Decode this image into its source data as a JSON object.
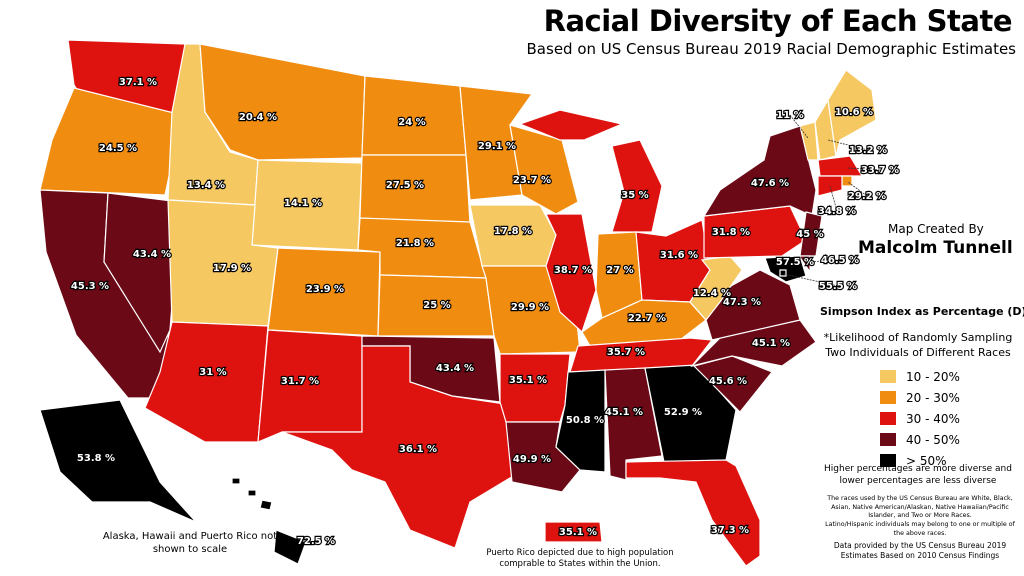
{
  "header": {
    "title": "Racial Diversity of Each State",
    "subtitle": "Based on US Census Bureau 2019 Racial Demographic Estimates"
  },
  "credit": {
    "line1": "Map Created By",
    "line2": "Malcolm Tunnell"
  },
  "legend": {
    "title": "Simpson Index as Percentage (D)*",
    "footnote": "*Likelihood of Randomly Sampling Two Individuals of Different Races",
    "items": [
      {
        "label": "10 - 20%",
        "color": "#f5c862"
      },
      {
        "label": "20 - 30%",
        "color": "#f08c10"
      },
      {
        "label": "30 - 40%",
        "color": "#de120f"
      },
      {
        "label": "40 - 50%",
        "color": "#6b0a16"
      },
      {
        "label": "> 50%",
        "color": "#000000"
      }
    ]
  },
  "notes": [
    "Higher percentages are more diverse and lower percentages are less diverse",
    "The races used by the US Census Bureau are White, Black, Asian, Native American/Alaskan, Native Hawaiian/Pacific Islander, and Two or More Races.",
    "Latino/Hispanic individuals may belong to one or multiple of the above races.",
    "Data provided by the US Census Bureau 2019 Estimates Based on 2010 Census Findings"
  ],
  "map_notes": {
    "scale": "Alaska, Hawaii and Puerto Rico not shown to scale",
    "puerto_rico": "Puerto Rico depicted due to high population comprable to States within the Union."
  },
  "regions": [
    {
      "label": "37.1 %",
      "color": "#de120f"
    },
    {
      "label": "24.5 %",
      "color": "#f08c10"
    },
    {
      "label": "45.3 %",
      "color": "#6b0a16"
    },
    {
      "label": "43.4 %",
      "color": "#6b0a16"
    },
    {
      "label": "13.4 %",
      "color": "#f5c862"
    },
    {
      "label": "20.4 %",
      "color": "#f08c10"
    },
    {
      "label": "14.1 %",
      "color": "#f5c862"
    },
    {
      "label": "17.9 %",
      "color": "#f5c862"
    },
    {
      "label": "31 %",
      "color": "#de120f"
    },
    {
      "label": "23.9 %",
      "color": "#f08c10"
    },
    {
      "label": "31.7 %",
      "color": "#de120f"
    },
    {
      "label": "24 %",
      "color": "#f08c10"
    },
    {
      "label": "27.5 %",
      "color": "#f08c10"
    },
    {
      "label": "21.8 %",
      "color": "#f08c10"
    },
    {
      "label": "25 %",
      "color": "#f08c10"
    },
    {
      "label": "43.4 %",
      "color": "#6b0a16"
    },
    {
      "label": "36.1 %",
      "color": "#de120f"
    },
    {
      "label": "29.1 %",
      "color": "#f08c10"
    },
    {
      "label": "17.8 %",
      "color": "#f5c862"
    },
    {
      "label": "29.9 %",
      "color": "#f08c10"
    },
    {
      "label": "35.1 %",
      "color": "#de120f"
    },
    {
      "label": "49.9 %",
      "color": "#6b0a16"
    },
    {
      "label": "23.7 %",
      "color": "#f08c10"
    },
    {
      "label": "38.7 %",
      "color": "#de120f"
    },
    {
      "label": "35 %",
      "color": "#de120f"
    },
    {
      "label": "27 %",
      "color": "#f08c10"
    },
    {
      "label": "31.6 %",
      "color": "#de120f"
    },
    {
      "label": "22.7 %",
      "color": "#f08c10"
    },
    {
      "label": "35.7 %",
      "color": "#de120f"
    },
    {
      "label": "50.8 %",
      "color": "#000000"
    },
    {
      "label": "45.1 %",
      "color": "#6b0a16"
    },
    {
      "label": "52.9 %",
      "color": "#000000"
    },
    {
      "label": "37.3 %",
      "color": "#de120f"
    },
    {
      "label": "45.6 %",
      "color": "#6b0a16"
    },
    {
      "label": "45.1 %",
      "color": "#6b0a16"
    },
    {
      "label": "47.3 %",
      "color": "#6b0a16"
    },
    {
      "label": "12.4 %",
      "color": "#f5c862"
    },
    {
      "label": "31.8 %",
      "color": "#de120f"
    },
    {
      "label": "47.6 %",
      "color": "#6b0a16"
    },
    {
      "label": "11 %",
      "color": "#f5c862"
    },
    {
      "label": "13.2 %",
      "color": "#f5c862"
    },
    {
      "label": "10.6 %",
      "color": "#f5c862"
    },
    {
      "label": "33.7 %",
      "color": "#de120f"
    },
    {
      "label": "29.2 %",
      "color": "#f08c10"
    },
    {
      "label": "34.8 %",
      "color": "#de120f"
    },
    {
      "label": "45 %",
      "color": "#6b0a16"
    },
    {
      "label": "46.5 %",
      "color": "#6b0a16"
    },
    {
      "label": "57.5 %",
      "color": "#000000"
    },
    {
      "label": "55.5 %",
      "color": "#000000"
    },
    {
      "label": "53.8 %",
      "color": "#000000"
    },
    {
      "label": "72.5 %",
      "color": "#000000"
    },
    {
      "label": "35.1 %",
      "color": "#de120f"
    }
  ]
}
